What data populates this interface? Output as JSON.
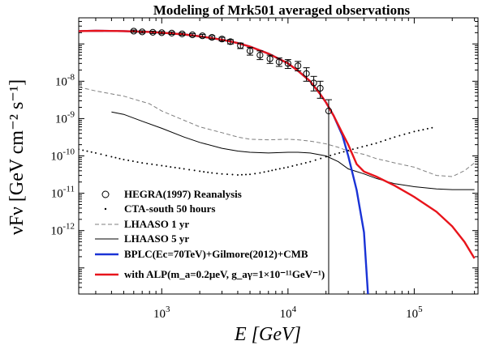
{
  "chart_data": {
    "type": "line",
    "title": "Modeling of Mrk501 averaged observations",
    "xlabel": "E [GeV]",
    "ylabel": "νFν [GeV cm⁻² s⁻¹]",
    "xscale": "log",
    "yscale": "log",
    "xlim": [
      220,
      320000
    ],
    "ylim": [
      2e-14,
      5e-07
    ],
    "x_ticks": [
      {
        "value": 1000,
        "label": "10",
        "exp": "3"
      },
      {
        "value": 10000,
        "label": "10",
        "exp": "4"
      },
      {
        "value": 100000,
        "label": "10",
        "exp": "5"
      }
    ],
    "y_ticks": [
      {
        "value": 1e-12,
        "label": "10",
        "exp": "-12"
      },
      {
        "value": 1e-11,
        "label": "10",
        "exp": "-11"
      },
      {
        "value": 1e-10,
        "label": "10",
        "exp": "-10"
      },
      {
        "value": 1e-09,
        "label": "10",
        "exp": "-9"
      },
      {
        "value": 1e-08,
        "label": "10",
        "exp": "-8"
      }
    ],
    "legend_position": "bottom-left",
    "series": [
      {
        "name": "HEGRA(1997) Reanalysis",
        "style": "markers",
        "color": "#000000",
        "points": [
          {
            "x": 600,
            "y": 2.2e-07,
            "lo": 2.05e-07,
            "hi": 2.35e-07
          },
          {
            "x": 700,
            "y": 2.1e-07,
            "lo": 1.95e-07,
            "hi": 2.25e-07
          },
          {
            "x": 850,
            "y": 2.05e-07,
            "lo": 1.9e-07,
            "hi": 2.2e-07
          },
          {
            "x": 1000,
            "y": 2e-07,
            "lo": 1.85e-07,
            "hi": 2.15e-07
          },
          {
            "x": 1200,
            "y": 1.95e-07,
            "lo": 1.8e-07,
            "hi": 2.1e-07
          },
          {
            "x": 1450,
            "y": 1.85e-07,
            "lo": 1.7e-07,
            "hi": 2e-07
          },
          {
            "x": 1750,
            "y": 1.75e-07,
            "lo": 1.6e-07,
            "hi": 1.9e-07
          },
          {
            "x": 2100,
            "y": 1.65e-07,
            "lo": 1.5e-07,
            "hi": 1.8e-07
          },
          {
            "x": 2500,
            "y": 1.5e-07,
            "lo": 1.35e-07,
            "hi": 1.65e-07
          },
          {
            "x": 3000,
            "y": 1.35e-07,
            "lo": 1.2e-07,
            "hi": 1.5e-07
          },
          {
            "x": 3500,
            "y": 1.15e-07,
            "lo": 1e-07,
            "hi": 1.3e-07
          },
          {
            "x": 4200,
            "y": 9e-08,
            "lo": 7.5e-08,
            "hi": 1.05e-07
          },
          {
            "x": 5000,
            "y": 6.5e-08,
            "lo": 5e-08,
            "hi": 8e-08
          },
          {
            "x": 6000,
            "y": 5e-08,
            "lo": 3.8e-08,
            "hi": 6.5e-08
          },
          {
            "x": 7200,
            "y": 4e-08,
            "lo": 3e-08,
            "hi": 5e-08
          },
          {
            "x": 8500,
            "y": 3.3e-08,
            "lo": 2.5e-08,
            "hi": 4.2e-08
          },
          {
            "x": 10000,
            "y": 3e-08,
            "lo": 2.2e-08,
            "hi": 3.8e-08
          },
          {
            "x": 12000,
            "y": 2.6e-08,
            "lo": 1.9e-08,
            "hi": 3.4e-08
          },
          {
            "x": 14000,
            "y": 1.6e-08,
            "lo": 1e-08,
            "hi": 2.3e-08
          },
          {
            "x": 16000,
            "y": 9e-09,
            "lo": 5.5e-09,
            "hi": 1.35e-08
          },
          {
            "x": 18000,
            "y": 6.5e-09,
            "lo": 3.5e-09,
            "hi": 1e-08
          },
          {
            "x": 21000,
            "y": 1.6e-09,
            "lo": 2e-14,
            "hi": 3.2e-09
          }
        ]
      },
      {
        "name": "CTA-south 50 hours",
        "style": "dots",
        "color": "#000000",
        "x": [
          220,
          300,
          400,
          500,
          700,
          1000,
          1500,
          2000,
          2500,
          3000,
          4000,
          5000,
          6000,
          7000,
          8000,
          10000,
          15000,
          20000,
          30000,
          50000,
          70000,
          100000,
          150000
        ],
        "y": [
          1.5e-10,
          1.2e-10,
          9.5e-11,
          8e-11,
          6.5e-11,
          5.5e-11,
          4.5e-11,
          3.9e-11,
          3.5e-11,
          3.3e-11,
          3.1e-11,
          3.2e-11,
          3.5e-11,
          3.9e-11,
          4.3e-11,
          5e-11,
          7e-11,
          9.5e-11,
          1.4e-10,
          2.2e-10,
          3.2e-10,
          4.5e-10,
          6e-10
        ]
      },
      {
        "name": "LHAASO 1 yr",
        "style": "dashed",
        "color": "#7f7f7f",
        "x": [
          220,
          300,
          500,
          800,
          1000,
          1500,
          2000,
          3000,
          4000,
          5000,
          7000,
          10000,
          12000,
          15000,
          20000,
          25000,
          30000,
          40000,
          50000,
          70000,
          100000,
          150000,
          200000,
          250000,
          300000
        ],
        "y": [
          7e-09,
          5.5e-09,
          4e-09,
          2.5e-09,
          1.6e-09,
          9e-10,
          6e-10,
          4.2e-10,
          3.2e-10,
          2.8e-10,
          2.7e-10,
          2.8e-10,
          2.7e-10,
          2.5e-10,
          2.1e-10,
          1.7e-10,
          1.35e-10,
          1.1e-10,
          8.5e-11,
          6.5e-11,
          5e-11,
          3e-11,
          2.8e-11,
          4e-11,
          6.5e-11
        ]
      },
      {
        "name": "LHAASO 5 yr",
        "style": "solid",
        "color": "#000000",
        "x": [
          400,
          500,
          700,
          1000,
          1500,
          2000,
          3000,
          4000,
          5000,
          7000,
          10000,
          12000,
          15000,
          20000,
          25000,
          30000,
          40000,
          50000,
          70000,
          100000,
          150000,
          200000,
          300000
        ],
        "y": [
          1.5e-09,
          1.3e-09,
          8.5e-10,
          5.5e-10,
          3.2e-10,
          2.3e-10,
          1.6e-10,
          1.35e-10,
          1.25e-10,
          1.2e-10,
          1.25e-10,
          1.25e-10,
          1.2e-10,
          1e-10,
          7e-11,
          4.5e-11,
          3.3e-11,
          2.5e-11,
          1.8e-11,
          1.5e-11,
          1.3e-11,
          1.25e-11,
          1.25e-11
        ]
      },
      {
        "name": "BPLC(Ec=70TeV)+Gilmore(2012)+CMB",
        "style": "solid",
        "color": "#1a33d6",
        "x": [
          220,
          300,
          500,
          800,
          1000,
          1500,
          2000,
          3000,
          4000,
          5000,
          7000,
          10000,
          12000,
          15000,
          18000,
          20000,
          23000,
          27000,
          30000,
          35000,
          40000,
          43000
        ],
        "y": [
          2.2e-07,
          2.25e-07,
          2.2e-07,
          2.1e-07,
          2e-07,
          1.8e-07,
          1.6e-07,
          1.3e-07,
          1.05e-07,
          8.5e-08,
          5.5e-08,
          3e-08,
          1.9e-08,
          1e-08,
          4.5e-09,
          2.7e-09,
          1.2e-09,
          3.5e-10,
          1e-10,
          1.2e-11,
          9e-13,
          2e-14
        ]
      },
      {
        "name": "with ALP(m_a=0.2μeV, g_aγ=1×10⁻¹¹GeV⁻¹)",
        "style": "solid",
        "color": "#e8141b",
        "x": [
          220,
          300,
          500,
          800,
          1000,
          1500,
          2000,
          3000,
          4000,
          5000,
          7000,
          10000,
          12000,
          15000,
          18000,
          20000,
          23000,
          27000,
          30000,
          35000,
          40000,
          50000,
          70000,
          100000,
          150000,
          200000,
          250000,
          300000
        ],
        "y": [
          2.2e-07,
          2.25e-07,
          2.2e-07,
          2.1e-07,
          2e-07,
          1.8e-07,
          1.6e-07,
          1.3e-07,
          1.05e-07,
          8.5e-08,
          5.5e-08,
          3e-08,
          1.9e-08,
          1e-08,
          4.5e-09,
          2.7e-09,
          1.2e-09,
          4e-10,
          2e-10,
          6e-11,
          3.8e-11,
          2.8e-11,
          1.6e-11,
          8e-12,
          3.2e-12,
          1.3e-12,
          5e-13,
          1.8e-13
        ]
      }
    ]
  }
}
